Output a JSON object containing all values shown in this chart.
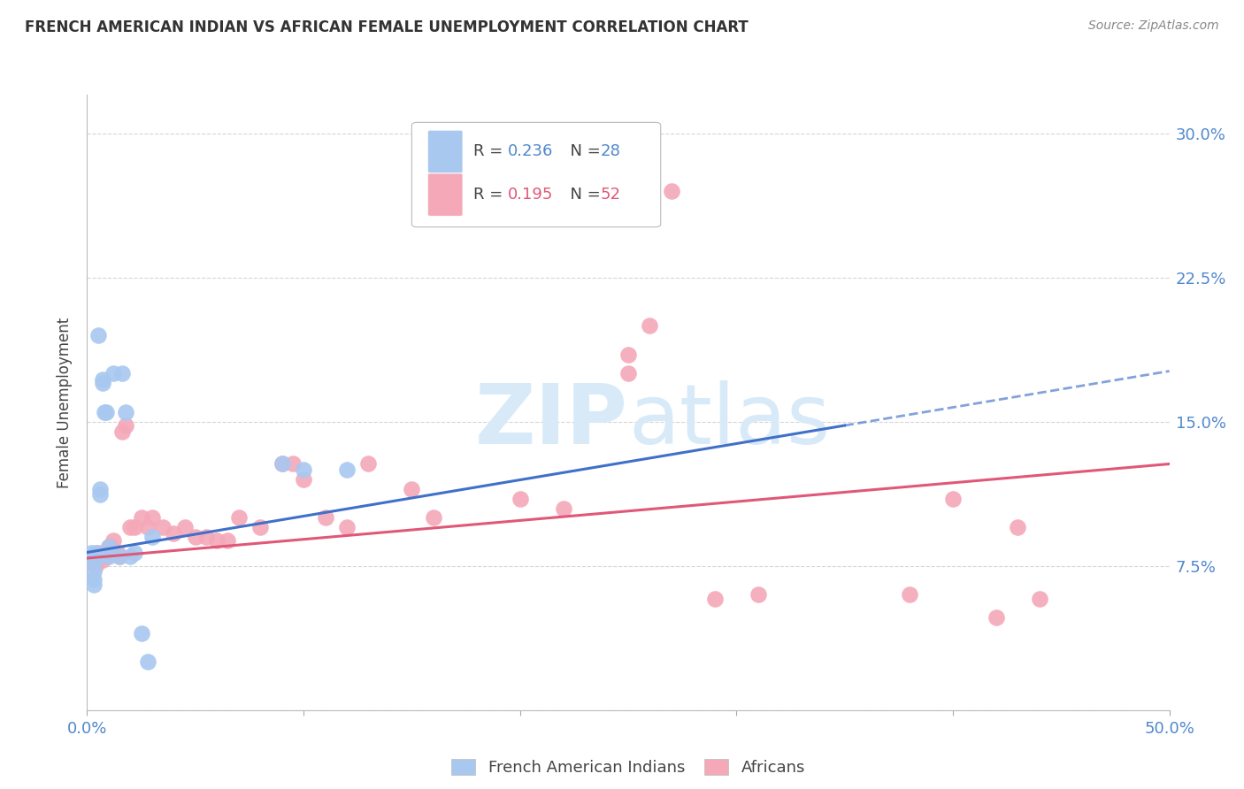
{
  "title": "FRENCH AMERICAN INDIAN VS AFRICAN FEMALE UNEMPLOYMENT CORRELATION CHART",
  "source": "Source: ZipAtlas.com",
  "ylabel": "Female Unemployment",
  "xlim": [
    0.0,
    0.5
  ],
  "ylim": [
    0.0,
    0.32
  ],
  "yticks": [
    0.0,
    0.075,
    0.15,
    0.225,
    0.3
  ],
  "yticklabels": [
    "",
    "7.5%",
    "15.0%",
    "22.5%",
    "30.0%"
  ],
  "R_blue": 0.236,
  "N_blue": 28,
  "R_pink": 0.195,
  "N_pink": 52,
  "blue_color": "#A8C8F0",
  "pink_color": "#F4A8B8",
  "blue_line_color": "#4070C8",
  "pink_line_color": "#E05878",
  "grid_color": "#CCCCCC",
  "watermark_color": "#D8EAF8",
  "blue_points_x": [
    0.002,
    0.002,
    0.003,
    0.003,
    0.003,
    0.004,
    0.004,
    0.005,
    0.006,
    0.006,
    0.007,
    0.007,
    0.008,
    0.009,
    0.01,
    0.01,
    0.012,
    0.015,
    0.016,
    0.018,
    0.02,
    0.022,
    0.025,
    0.028,
    0.03,
    0.09,
    0.1,
    0.12
  ],
  "blue_points_y": [
    0.078,
    0.082,
    0.072,
    0.068,
    0.065,
    0.078,
    0.082,
    0.195,
    0.112,
    0.115,
    0.17,
    0.172,
    0.155,
    0.155,
    0.08,
    0.085,
    0.175,
    0.08,
    0.175,
    0.155,
    0.08,
    0.082,
    0.04,
    0.025,
    0.09,
    0.128,
    0.125,
    0.125
  ],
  "pink_points_x": [
    0.002,
    0.003,
    0.003,
    0.004,
    0.005,
    0.006,
    0.007,
    0.008,
    0.009,
    0.01,
    0.01,
    0.011,
    0.012,
    0.014,
    0.015,
    0.016,
    0.018,
    0.02,
    0.022,
    0.025,
    0.028,
    0.03,
    0.035,
    0.04,
    0.045,
    0.05,
    0.055,
    0.06,
    0.065,
    0.07,
    0.08,
    0.09,
    0.095,
    0.1,
    0.11,
    0.12,
    0.13,
    0.15,
    0.16,
    0.2,
    0.22,
    0.25,
    0.26,
    0.27,
    0.29,
    0.31,
    0.25,
    0.38,
    0.4,
    0.42,
    0.43,
    0.44
  ],
  "pink_points_y": [
    0.08,
    0.078,
    0.076,
    0.075,
    0.082,
    0.08,
    0.078,
    0.082,
    0.08,
    0.085,
    0.083,
    0.085,
    0.088,
    0.082,
    0.08,
    0.145,
    0.148,
    0.095,
    0.095,
    0.1,
    0.095,
    0.1,
    0.095,
    0.092,
    0.095,
    0.09,
    0.09,
    0.088,
    0.088,
    0.1,
    0.095,
    0.128,
    0.128,
    0.12,
    0.1,
    0.095,
    0.128,
    0.115,
    0.1,
    0.11,
    0.105,
    0.185,
    0.2,
    0.27,
    0.058,
    0.06,
    0.175,
    0.06,
    0.11,
    0.048,
    0.095,
    0.058
  ]
}
